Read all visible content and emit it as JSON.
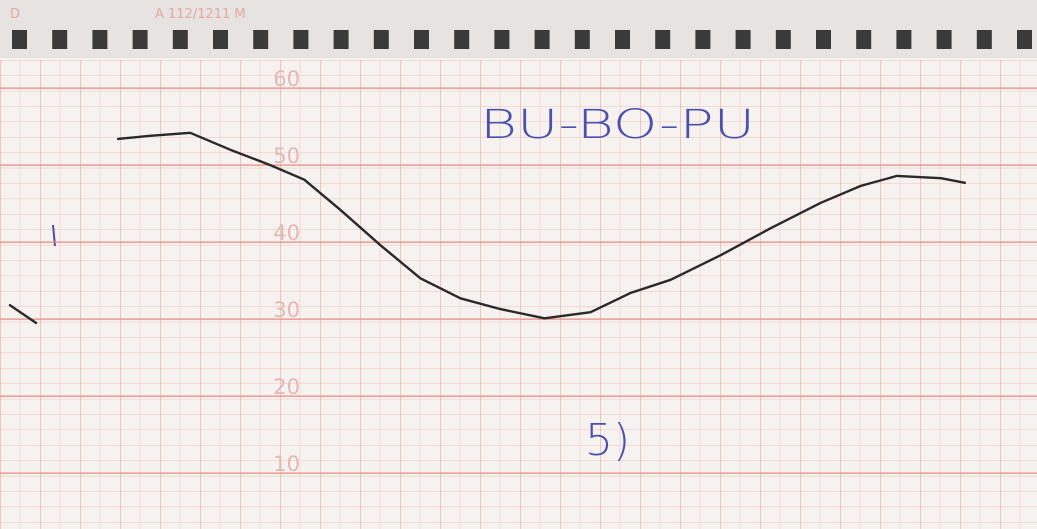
{
  "chart_data": {
    "type": "line",
    "header_code": "A 112/1211 M",
    "corner_mark": "D",
    "title": "BU-BO-PU",
    "annotation": "5)",
    "x": [
      0.25,
      0.9,
      null,
      2.95,
      3.75,
      4.75,
      5.75,
      6.75,
      7.6,
      8.5,
      9.5,
      10.5,
      11.5,
      12.5,
      13.6,
      14.75,
      15.75,
      16.75,
      18,
      19.25,
      20.5,
      21.5,
      22.4,
      23.5,
      24.1
    ],
    "series": [
      {
        "color": "#2a2a2a",
        "values": [
          31.8,
          29.5,
          null,
          53.4,
          53.8,
          54.2,
          52.0,
          50,
          48.1,
          44.2,
          39.6,
          35.3,
          32.7,
          31.3,
          30.1,
          30.9,
          33.4,
          35.1,
          38.3,
          41.8,
          45.1,
          47.3,
          48.6,
          48.3,
          47.7
        ]
      }
    ],
    "xlim": [
      0,
      25.9
    ],
    "ylim": [
      4,
      64
    ],
    "yticks": [
      10,
      20,
      30,
      40,
      50,
      60
    ],
    "grid": true
  }
}
